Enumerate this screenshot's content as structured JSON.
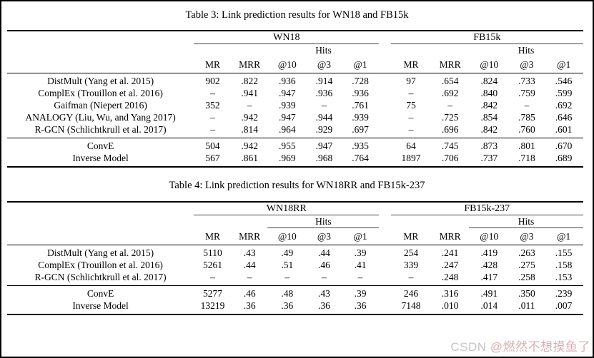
{
  "colors": {
    "background": "#ffffff",
    "text": "#000000",
    "rule": "#000000",
    "watermark_site": "#bbbbbb",
    "watermark_handle": "#d2a2a2"
  },
  "watermark": {
    "site": "CSDN ",
    "handle": "@燃然不想摸鱼了"
  },
  "tables": [
    {
      "caption": "Table 3: Link prediction results for WN18 and FB15k",
      "column_groups": [
        "WN18",
        "FB15k"
      ],
      "hits_label": "Hits",
      "hits_underline": false,
      "columns": [
        "MR",
        "MRR",
        "@10",
        "@3",
        "@1",
        "MR",
        "MRR",
        "@10",
        "@3",
        "@1"
      ],
      "sections": [
        {
          "rows": [
            {
              "model": "DistMult (Yang et al. 2015)",
              "values": [
                "902",
                ".822",
                ".936",
                ".914",
                ".728",
                "97",
                ".654",
                ".824",
                ".733",
                ".546"
              ]
            },
            {
              "model": "ComplEx (Trouillon et al. 2016)",
              "values": [
                "–",
                ".941",
                ".947",
                ".936",
                ".936",
                "–",
                ".692",
                ".840",
                ".759",
                ".599"
              ]
            },
            {
              "model": "Gaifman (Niepert 2016)",
              "values": [
                "**352**",
                "–",
                ".939",
                "–",
                ".761",
                "75",
                "–",
                ".842",
                "–",
                ".692"
              ]
            },
            {
              "model": "ANALOGY (Liu, Wu, and Yang 2017)",
              "values": [
                "–",
                "**.942**",
                ".947",
                ".944",
                "**.939**",
                "–",
                ".725",
                ".854",
                ".785",
                ".646"
              ]
            },
            {
              "model": "R-GCN (Schlichtkrull et al. 2017)",
              "values": [
                "–",
                ".814",
                ".964",
                ".929",
                ".697",
                "–",
                ".696",
                ".842",
                ".760",
                ".601"
              ]
            }
          ]
        },
        {
          "rows": [
            {
              "model": "ConvE",
              "values": [
                "504",
                "**.942**",
                ".955",
                ".947",
                ".935",
                "**64**",
                "**.745**",
                "**.873**",
                "**.801**",
                ".670"
              ]
            },
            {
              "model": "Inverse Model",
              "values": [
                "567",
                ".861",
                "**.969**",
                "**.968**",
                ".764",
                "1897",
                ".706",
                ".737",
                ".718",
                "**.689**"
              ]
            }
          ]
        }
      ]
    },
    {
      "caption": "Table 4: Link prediction results for WN18RR and FB15k-237",
      "column_groups": [
        "WN18RR",
        "FB15k-237"
      ],
      "hits_label": "Hits",
      "hits_underline": true,
      "columns": [
        "MR",
        "MRR",
        "@10",
        "@3",
        "@1",
        "MR",
        "MRR",
        "@10",
        "@3",
        "@1"
      ],
      "sections": [
        {
          "rows": [
            {
              "model": "DistMult (Yang et al. 2015)",
              "values": [
                "**5110**",
                ".43",
                ".49",
                ".44",
                ".39",
                "254",
                ".241",
                ".419",
                ".263",
                ".155"
              ]
            },
            {
              "model": "ComplEx (Trouillon et al. 2016)",
              "values": [
                "5261",
                ".44",
                "**.51**",
                "**.46**",
                "**.41**",
                "339",
                ".247",
                ".428",
                ".275",
                ".158"
              ]
            },
            {
              "model": "R-GCN (Schlichtkrull et al. 2017)",
              "values": [
                "–",
                "–",
                "–",
                "–",
                "–",
                "–",
                ".248",
                ".417",
                ".258",
                ".153"
              ]
            }
          ]
        },
        {
          "rows": [
            {
              "model": "ConvE",
              "values": [
                "5277",
                "**.46**",
                ".48",
                ".43",
                ".39",
                "**246**",
                "**.316**",
                "**.491**",
                "**.350**",
                "**.239**"
              ]
            },
            {
              "model": "Inverse Model",
              "values": [
                "13219",
                ".36",
                ".36",
                ".36",
                ".36",
                "7148",
                ".010",
                ".014",
                ".011",
                ".007"
              ]
            }
          ]
        }
      ]
    }
  ]
}
